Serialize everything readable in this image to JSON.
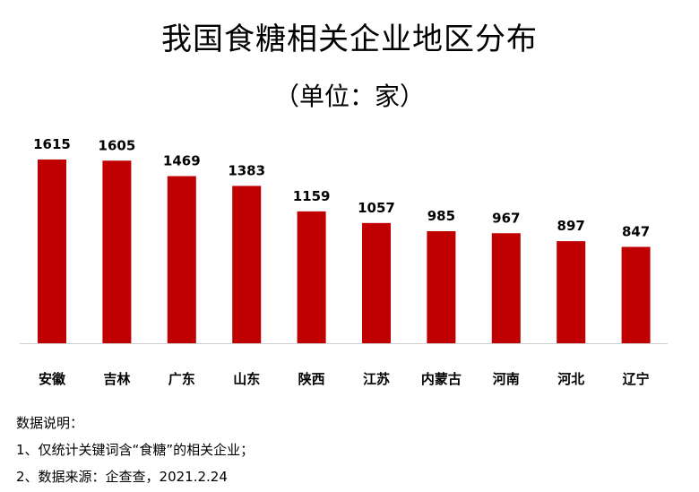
{
  "chart_data": {
    "type": "bar",
    "title": "我国食糖相关企业地区分布",
    "subtitle": "（单位：家）",
    "categories": [
      "安徽",
      "吉林",
      "广东",
      "山东",
      "陕西",
      "江苏",
      "内蒙古",
      "河南",
      "河北",
      "辽宁"
    ],
    "values": [
      1615,
      1605,
      1469,
      1383,
      1159,
      1057,
      985,
      967,
      897,
      847
    ],
    "bar_color": "#C00000",
    "ylim": [
      0,
      1615
    ],
    "grid": false,
    "legend": "none"
  },
  "notes": {
    "heading": "数据说明：",
    "line1": "1、仅统计关键词含“食糖”的相关企业；",
    "line2": "2、数据来源：企查查，2021.2.24"
  }
}
